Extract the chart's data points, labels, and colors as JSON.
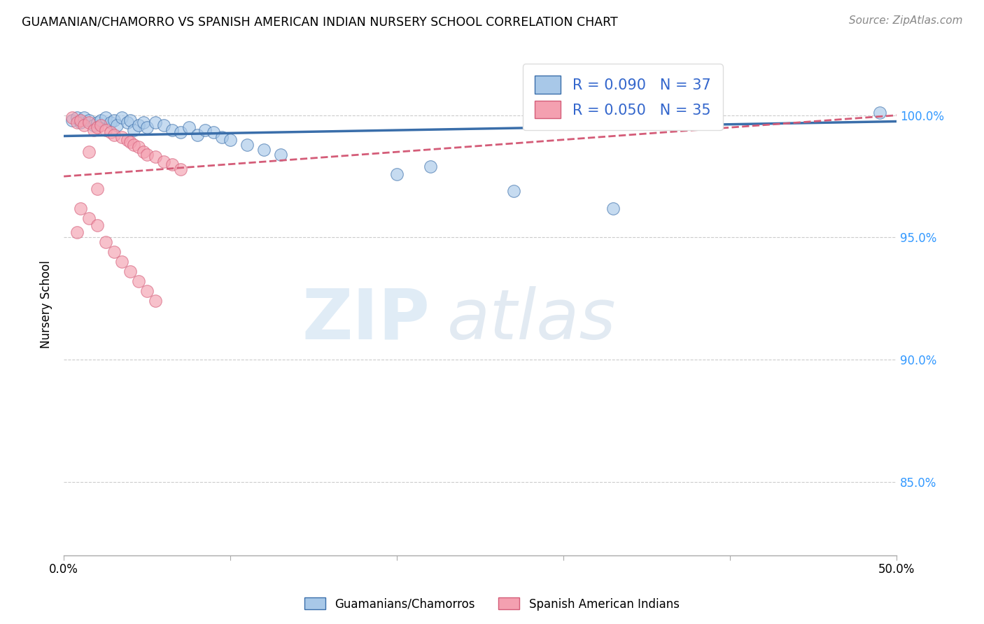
{
  "title": "GUAMANIAN/CHAMORRO VS SPANISH AMERICAN INDIAN NURSERY SCHOOL CORRELATION CHART",
  "source": "Source: ZipAtlas.com",
  "ylabel": "Nursery School",
  "xlim": [
    0.0,
    0.5
  ],
  "ylim": [
    0.82,
    1.025
  ],
  "yticks": [
    0.85,
    0.9,
    0.95,
    1.0
  ],
  "ytick_labels": [
    "85.0%",
    "90.0%",
    "95.0%",
    "100.0%"
  ],
  "xticks": [
    0.0,
    0.1,
    0.2,
    0.3,
    0.4,
    0.5
  ],
  "xtick_labels": [
    "0.0%",
    "",
    "",
    "",
    "",
    "50.0%"
  ],
  "blue_R": 0.09,
  "blue_N": 37,
  "pink_R": 0.05,
  "pink_N": 35,
  "blue_label": "Guamanians/Chamorros",
  "pink_label": "Spanish American Indians",
  "blue_color": "#a8c8e8",
  "pink_color": "#f4a0b0",
  "blue_line_color": "#3a6eaa",
  "pink_line_color": "#d45c78",
  "blue_scatter_x": [
    0.005,
    0.008,
    0.01,
    0.012,
    0.015,
    0.018,
    0.02,
    0.022,
    0.025,
    0.028,
    0.03,
    0.032,
    0.035,
    0.038,
    0.04,
    0.042,
    0.045,
    0.048,
    0.05,
    0.055,
    0.06,
    0.065,
    0.07,
    0.075,
    0.08,
    0.085,
    0.09,
    0.095,
    0.1,
    0.11,
    0.12,
    0.13,
    0.2,
    0.22,
    0.27,
    0.33,
    0.49
  ],
  "blue_scatter_y": [
    0.998,
    0.999,
    0.997,
    0.999,
    0.998,
    0.996,
    0.997,
    0.998,
    0.999,
    0.997,
    0.998,
    0.996,
    0.999,
    0.997,
    0.998,
    0.994,
    0.996,
    0.997,
    0.995,
    0.997,
    0.996,
    0.994,
    0.993,
    0.995,
    0.992,
    0.994,
    0.993,
    0.991,
    0.99,
    0.988,
    0.986,
    0.984,
    0.976,
    0.979,
    0.969,
    0.962,
    1.001
  ],
  "pink_scatter_x": [
    0.005,
    0.008,
    0.01,
    0.012,
    0.015,
    0.018,
    0.02,
    0.022,
    0.025,
    0.028,
    0.03,
    0.035,
    0.038,
    0.04,
    0.042,
    0.045,
    0.048,
    0.05,
    0.055,
    0.06,
    0.065,
    0.07,
    0.01,
    0.015,
    0.02,
    0.008,
    0.025,
    0.03,
    0.035,
    0.04,
    0.045,
    0.05,
    0.055,
    0.015,
    0.02
  ],
  "pink_scatter_y": [
    0.999,
    0.997,
    0.998,
    0.996,
    0.997,
    0.994,
    0.995,
    0.996,
    0.994,
    0.993,
    0.992,
    0.991,
    0.99,
    0.989,
    0.988,
    0.987,
    0.985,
    0.984,
    0.983,
    0.981,
    0.98,
    0.978,
    0.962,
    0.958,
    0.955,
    0.952,
    0.948,
    0.944,
    0.94,
    0.936,
    0.932,
    0.928,
    0.924,
    0.985,
    0.97
  ],
  "blue_trendline_x": [
    0.0,
    0.5
  ],
  "blue_trendline_y": [
    0.9915,
    0.9975
  ],
  "pink_trendline_x": [
    0.0,
    0.5
  ],
  "pink_trendline_y": [
    0.975,
    1.0
  ]
}
